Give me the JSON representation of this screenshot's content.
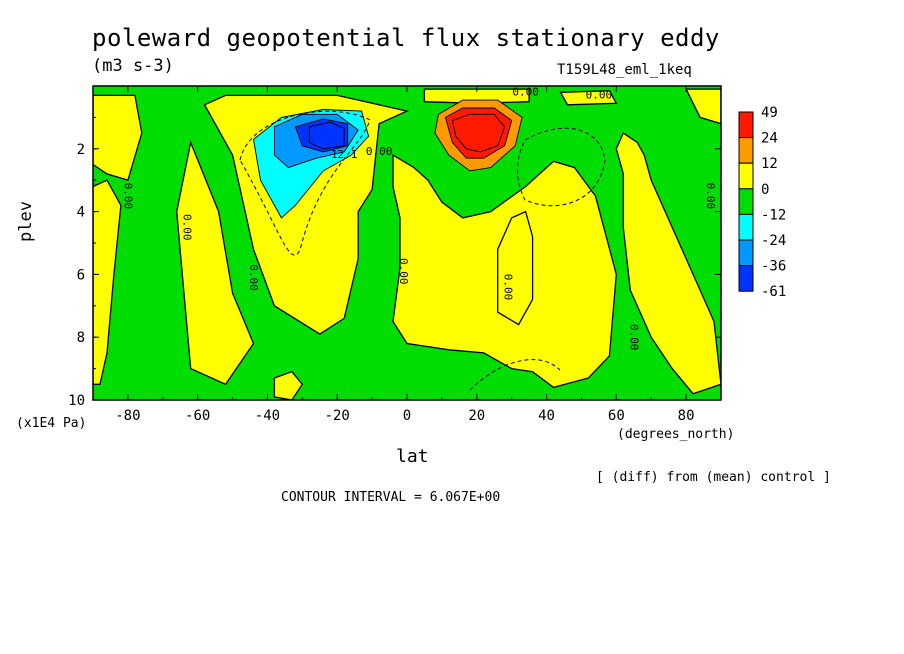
{
  "figure": {
    "title": "poleward geopotential flux stationary eddy",
    "units": "(m3 s-3)",
    "run": "T159L48_eml_1keq",
    "y_multiplier": "(x1E4 Pa)",
    "x_units": "(degrees_north)",
    "note": "[ (diff) from (mean) control ]",
    "contour_interval": "CONTOUR INTERVAL = 6.067E+00"
  },
  "chart_data": {
    "type": "heatmap",
    "title": "poleward geopotential flux stationary eddy",
    "xlabel": "lat",
    "ylabel": "plev",
    "xlim": [
      -90,
      90
    ],
    "ylim": [
      10,
      0
    ],
    "y_reversed": true,
    "x_ticks": [
      -80,
      -60,
      -40,
      -20,
      0,
      20,
      40,
      60,
      80
    ],
    "x_tick_labels": [
      "-80",
      "-60",
      "-40",
      "-20",
      "0",
      "20",
      "40",
      "60",
      "80"
    ],
    "y_ticks": [
      2,
      4,
      6,
      8,
      10
    ],
    "y_tick_labels": [
      "2",
      "4",
      "6",
      "8",
      "10"
    ],
    "colorbar": {
      "labels": [
        "49",
        "24",
        "12",
        "0",
        "-12",
        "-24",
        "-36",
        "-61"
      ],
      "colors": [
        "#ff1a00",
        "#ff9900",
        "#ffff00",
        "#00dd00",
        "#00ffff",
        "#0099ff",
        "#0033ff"
      ]
    },
    "contour_labels": [
      "0.00",
      "0.00",
      "0.00",
      "0.00",
      "0.00",
      "0.00",
      "0.00",
      "0.00",
      "0.00",
      "0.00",
      "12.1"
    ],
    "features": [
      {
        "kind": "min",
        "lat": -25,
        "plev": 1.8,
        "value": -61
      },
      {
        "kind": "max",
        "lat": 20,
        "plev": 1.8,
        "value": 49
      }
    ],
    "regions": [
      {
        "level": "0",
        "points": [
          [
            -40,
            0.3
          ],
          [
            -20,
            0.3
          ],
          [
            0,
            0.8
          ],
          [
            -8,
            1.2
          ],
          [
            -10,
            3.3
          ],
          [
            -14,
            4.0
          ],
          [
            -14,
            5.5
          ],
          [
            -18,
            7.4
          ],
          [
            -25,
            7.9
          ],
          [
            -38,
            7.0
          ],
          [
            -44,
            5.2
          ],
          [
            -50,
            2.2
          ],
          [
            -58,
            0.6
          ],
          [
            -52,
            0.3
          ]
        ]
      },
      {
        "level": "0",
        "points": [
          [
            -62,
            1.8
          ],
          [
            -54,
            4.0
          ],
          [
            -50,
            6.6
          ],
          [
            -44,
            8.2
          ],
          [
            -52,
            9.5
          ],
          [
            -62,
            9.0
          ],
          [
            -64,
            6.5
          ],
          [
            -66,
            4.0
          ]
        ]
      },
      {
        "level": "0",
        "points": [
          [
            -90,
            0.3
          ],
          [
            -78,
            0.3
          ],
          [
            -76,
            1.5
          ],
          [
            -80,
            3.0
          ],
          [
            -86,
            2.8
          ],
          [
            -90,
            2.5
          ]
        ]
      },
      {
        "level": "0",
        "points": [
          [
            -90,
            3.2
          ],
          [
            -86,
            3.0
          ],
          [
            -82,
            3.8
          ],
          [
            -84,
            6.0
          ],
          [
            -86,
            8.5
          ],
          [
            -88,
            9.5
          ],
          [
            -90,
            9.5
          ]
        ]
      },
      {
        "level": "0",
        "points": [
          [
            -4,
            2.2
          ],
          [
            2,
            2.6
          ],
          [
            6,
            3.0
          ],
          [
            10,
            3.7
          ],
          [
            16,
            4.2
          ],
          [
            24,
            4.0
          ],
          [
            34,
            3.2
          ],
          [
            42,
            2.4
          ],
          [
            48,
            2.6
          ],
          [
            54,
            3.5
          ],
          [
            60,
            6.0
          ],
          [
            58,
            8.6
          ],
          [
            52,
            9.3
          ],
          [
            42,
            9.6
          ],
          [
            36,
            9.1
          ],
          [
            30,
            9.0
          ],
          [
            22,
            8.5
          ],
          [
            12,
            8.4
          ],
          [
            6,
            8.3
          ],
          [
            0,
            8.2
          ],
          [
            -4,
            7.5
          ],
          [
            -2,
            5.8
          ],
          [
            -2,
            4.2
          ],
          [
            -4,
            3.2
          ]
        ]
      },
      {
        "level": "0",
        "points": [
          [
            34,
            4.0
          ],
          [
            36,
            4.8
          ],
          [
            36,
            6.8
          ],
          [
            32,
            7.6
          ],
          [
            26,
            7.2
          ],
          [
            26,
            5.2
          ],
          [
            30,
            4.2
          ]
        ]
      },
      {
        "level": "0",
        "points": [
          [
            62,
            1.5
          ],
          [
            66,
            1.8
          ],
          [
            68,
            2.2
          ],
          [
            70,
            3.0
          ],
          [
            76,
            4.5
          ],
          [
            82,
            6.0
          ],
          [
            88,
            7.5
          ],
          [
            90,
            9.5
          ],
          [
            82,
            9.8
          ],
          [
            76,
            9.0
          ],
          [
            70,
            8.0
          ],
          [
            64,
            6.5
          ],
          [
            62,
            4.5
          ],
          [
            62,
            2.8
          ],
          [
            60,
            2.0
          ]
        ]
      },
      {
        "level": "0",
        "points": [
          [
            -38,
            9.3
          ],
          [
            -33,
            9.1
          ],
          [
            -30,
            9.5
          ],
          [
            -33,
            10.0
          ],
          [
            -38,
            9.9
          ]
        ]
      },
      {
        "level": "0",
        "points": [
          [
            5,
            0.1
          ],
          [
            35,
            0.1
          ],
          [
            35,
            0.5
          ],
          [
            20,
            0.55
          ],
          [
            5,
            0.5
          ]
        ]
      },
      {
        "level": "0",
        "points": [
          [
            44,
            0.2
          ],
          [
            58,
            0.15
          ],
          [
            60,
            0.55
          ],
          [
            46,
            0.6
          ]
        ]
      },
      {
        "level": "0",
        "points": [
          [
            80,
            0.1
          ],
          [
            90,
            0.1
          ],
          [
            90,
            1.2
          ],
          [
            84,
            1.0
          ]
        ]
      },
      {
        "level": "12",
        "points": [
          [
            9,
            0.9
          ],
          [
            16,
            0.45
          ],
          [
            26,
            0.45
          ],
          [
            33,
            1.0
          ],
          [
            31,
            1.9
          ],
          [
            24,
            2.6
          ],
          [
            18,
            2.7
          ],
          [
            12,
            2.2
          ],
          [
            8,
            1.5
          ]
        ]
      },
      {
        "level": "24",
        "points": [
          [
            11,
            1.0
          ],
          [
            16,
            0.7
          ],
          [
            25,
            0.7
          ],
          [
            30,
            1.1
          ],
          [
            28,
            1.9
          ],
          [
            22,
            2.3
          ],
          [
            17,
            2.3
          ],
          [
            13,
            1.8
          ]
        ]
      },
      {
        "level": "49",
        "points": [
          [
            13,
            1.1
          ],
          [
            18,
            0.9
          ],
          [
            25,
            0.9
          ],
          [
            28,
            1.3
          ],
          [
            26,
            1.9
          ],
          [
            21,
            2.1
          ],
          [
            17,
            2.0
          ],
          [
            14,
            1.6
          ]
        ]
      },
      {
        "level": "-12",
        "points": [
          [
            -44,
            1.7
          ],
          [
            -36,
            1.0
          ],
          [
            -24,
            0.75
          ],
          [
            -13,
            0.8
          ],
          [
            -11,
            1.6
          ],
          [
            -16,
            2.2
          ],
          [
            -24,
            2.7
          ],
          [
            -32,
            3.8
          ],
          [
            -36,
            4.2
          ],
          [
            -42,
            3.0
          ]
        ]
      },
      {
        "level": "-24",
        "points": [
          [
            -38,
            1.3
          ],
          [
            -30,
            0.9
          ],
          [
            -20,
            0.9
          ],
          [
            -14,
            1.4
          ],
          [
            -18,
            2.1
          ],
          [
            -26,
            2.3
          ],
          [
            -34,
            2.6
          ],
          [
            -38,
            2.2
          ]
        ]
      },
      {
        "level": "-36",
        "points": [
          [
            -32,
            1.3
          ],
          [
            -24,
            1.05
          ],
          [
            -17,
            1.2
          ],
          [
            -17,
            1.9
          ],
          [
            -24,
            2.1
          ],
          [
            -30,
            1.9
          ]
        ]
      },
      {
        "level": "-61",
        "points": [
          [
            -28,
            1.3
          ],
          [
            -22,
            1.15
          ],
          [
            -18,
            1.35
          ],
          [
            -18,
            1.9
          ],
          [
            -24,
            2.0
          ],
          [
            -28,
            1.8
          ]
        ]
      }
    ]
  }
}
